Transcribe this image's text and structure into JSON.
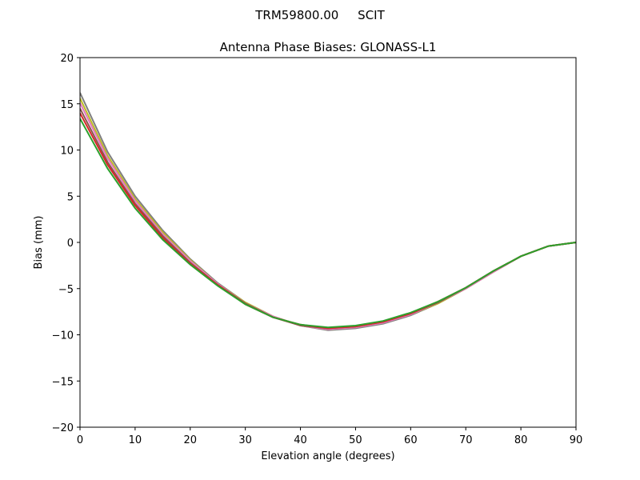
{
  "chart_data": {
    "type": "line",
    "suptitle": "TRM59800.00     SCIT",
    "title": "Antenna Phase Biases: GLONASS-L1",
    "x_label": "Elevation angle (degrees)",
    "y_label": "Bias (mm)",
    "x": [
      0,
      5,
      10,
      15,
      20,
      25,
      30,
      35,
      40,
      45,
      50,
      55,
      60,
      65,
      70,
      75,
      80,
      85,
      90
    ],
    "series": [
      {
        "color": "#7f7f7f",
        "values": [
          16.2,
          9.8,
          5.0,
          1.3,
          -1.8,
          -4.4,
          -6.5,
          -8.0,
          -9.0,
          -9.5,
          -9.3,
          -8.8,
          -7.9,
          -6.6,
          -5.0,
          -3.2,
          -1.5,
          -0.4,
          0
        ]
      },
      {
        "color": "#bcbd22",
        "values": [
          15.6,
          9.4,
          4.7,
          1.1,
          -1.9,
          -4.5,
          -6.5,
          -8.0,
          -9.0,
          -9.4,
          -9.2,
          -8.7,
          -7.8,
          -6.6,
          -5.0,
          -3.2,
          -1.5,
          -0.4,
          0
        ]
      },
      {
        "color": "#e377c2",
        "values": [
          15.1,
          9.1,
          4.5,
          0.9,
          -2.0,
          -4.5,
          -6.6,
          -8.0,
          -9.0,
          -9.4,
          -9.2,
          -8.7,
          -7.8,
          -6.5,
          -5.0,
          -3.2,
          -1.5,
          -0.4,
          0
        ]
      },
      {
        "color": "#8c564b",
        "values": [
          14.5,
          8.7,
          4.2,
          0.7,
          -2.2,
          -4.6,
          -6.6,
          -8.1,
          -9.0,
          -9.3,
          -9.1,
          -8.6,
          -7.7,
          -6.5,
          -4.9,
          -3.1,
          -1.5,
          -0.4,
          0
        ]
      },
      {
        "color": "#d62728",
        "values": [
          14.0,
          8.4,
          4.0,
          0.5,
          -2.3,
          -4.6,
          -6.7,
          -8.1,
          -8.9,
          -9.3,
          -9.1,
          -8.6,
          -7.7,
          -6.4,
          -4.9,
          -3.1,
          -1.5,
          -0.4,
          0
        ]
      },
      {
        "color": "#2ca02c",
        "values": [
          13.4,
          8.0,
          3.7,
          0.3,
          -2.4,
          -4.7,
          -6.7,
          -8.1,
          -8.9,
          -9.2,
          -9.0,
          -8.5,
          -7.6,
          -6.4,
          -4.9,
          -3.1,
          -1.5,
          -0.4,
          0
        ]
      }
    ],
    "xlim": [
      0,
      90
    ],
    "xticks": [
      0,
      10,
      20,
      30,
      40,
      50,
      60,
      70,
      80,
      90
    ],
    "ylim": [
      -20,
      20
    ],
    "yticks": [
      {
        "value": -20,
        "label": "−20"
      },
      {
        "value": -15,
        "label": "−15"
      },
      {
        "value": -10,
        "label": "−10"
      },
      {
        "value": -5,
        "label": "−5"
      },
      0,
      5,
      10,
      15,
      20
    ],
    "grid": false
  }
}
